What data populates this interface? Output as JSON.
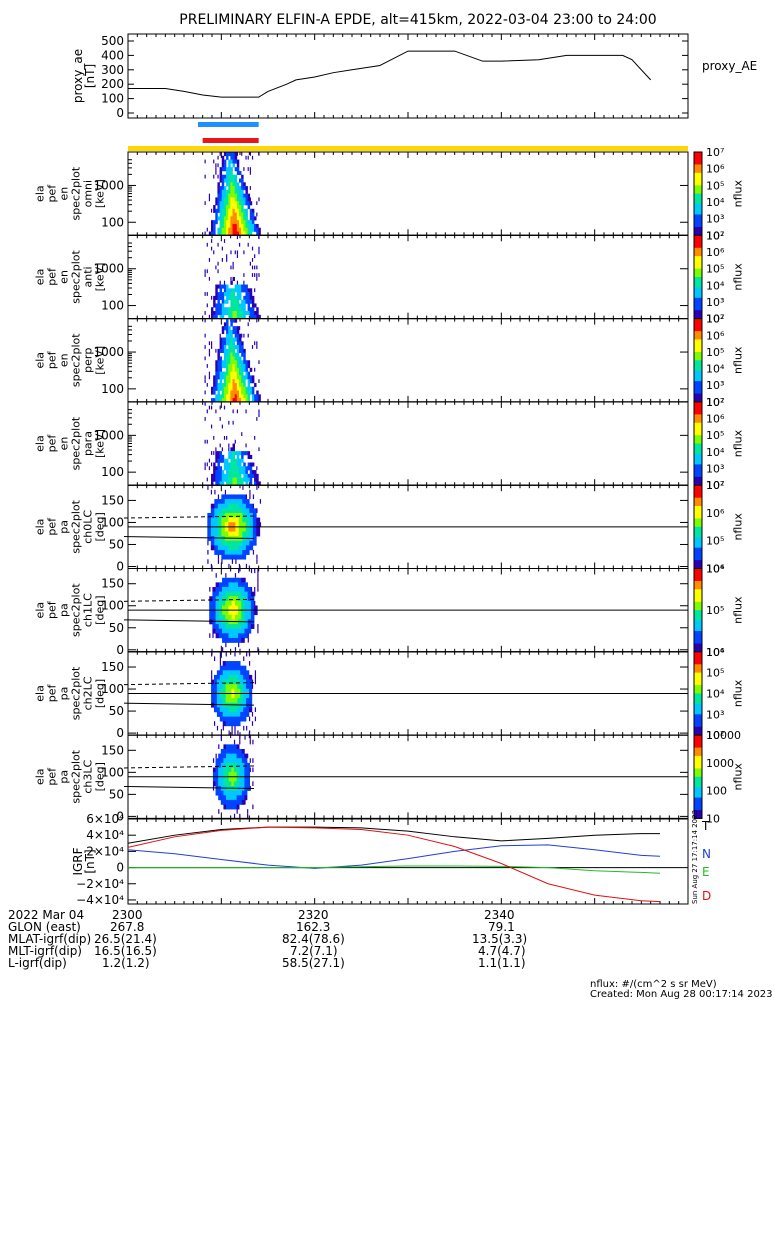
{
  "title": "PRELIMINARY ELFIN-A EPDE, alt=415km, 2022-03-04 23:00 to 24:00",
  "colors": {
    "bar_blue": "#1e90ff",
    "bar_red": "#e8161b",
    "bar_yellow": "#ffd700",
    "T": "#000000",
    "N": "#1f3fd6",
    "E": "#1fbf1f",
    "D": "#e01010"
  },
  "time_axis": {
    "start": "23:00",
    "end": "24:00",
    "ticks": [
      "2300",
      "2320",
      "2340"
    ]
  },
  "chart_data": [
    {
      "type": "line",
      "ylabel": "proxy_ae [nT]",
      "legend": "proxy_AE",
      "ylim": [
        0,
        500
      ],
      "yticks": [
        "0",
        "100",
        "200",
        "300",
        "400",
        "500"
      ],
      "x": [
        0,
        2,
        4,
        6,
        8,
        10,
        12,
        14,
        15,
        17,
        18,
        20,
        22,
        24,
        27,
        30,
        32,
        35,
        38,
        40,
        44,
        47,
        51,
        53,
        54,
        56
      ],
      "series": [
        {
          "name": "proxy_AE",
          "values": [
            170,
            170,
            170,
            150,
            125,
            110,
            110,
            110,
            150,
            200,
            230,
            250,
            280,
            300,
            330,
            430,
            430,
            430,
            360,
            360,
            370,
            400,
            400,
            400,
            370,
            230
          ]
        }
      ],
      "x_units": "minutes after 23:00"
    },
    {
      "type": "heatmap",
      "ylabel": "ela pef en spec2plot omni [keV]",
      "yscale": "log",
      "yticks": [
        "100",
        "1000"
      ],
      "zlabel": "nflux",
      "zticks": [
        "10²",
        "10³",
        "10⁴",
        "10⁵",
        "10⁶",
        "10⁷"
      ],
      "active_minutes": [
        8,
        14
      ]
    },
    {
      "type": "heatmap",
      "ylabel": "ela pef en spec2plot anti [keV]",
      "yscale": "log",
      "yticks": [
        "100",
        "1000"
      ],
      "zlabel": "nflux",
      "zticks": [
        "10²",
        "10³",
        "10⁴",
        "10⁵",
        "10⁶",
        "10⁷"
      ],
      "active_minutes": [
        8,
        14
      ]
    },
    {
      "type": "heatmap",
      "ylabel": "ela pef en spec2plot perp [keV]",
      "yscale": "log",
      "yticks": [
        "100",
        "1000"
      ],
      "zlabel": "nflux",
      "zticks": [
        "10²",
        "10³",
        "10⁴",
        "10⁵",
        "10⁶",
        "10⁷"
      ],
      "active_minutes": [
        8,
        14
      ]
    },
    {
      "type": "heatmap",
      "ylabel": "ela pef en spec2plot para [keV]",
      "yscale": "log",
      "yticks": [
        "100",
        "1000"
      ],
      "zlabel": "nflux",
      "zticks": [
        "10²",
        "10³",
        "10⁴",
        "10⁵",
        "10⁶",
        "10⁷"
      ],
      "active_minutes": [
        8,
        14
      ]
    },
    {
      "type": "heatmap",
      "ylabel": "ela pef pa spec2plot ch0LC [deg]",
      "ylim": [
        0,
        180
      ],
      "yticks": [
        "0",
        "50",
        "100",
        "150"
      ],
      "zlabel": "nflux",
      "zticks": [
        "10⁴",
        "10⁵",
        "10⁶",
        "10⁷"
      ],
      "active_minutes": [
        8,
        14
      ]
    },
    {
      "type": "heatmap",
      "ylabel": "ela pef pa spec2plot ch1LC [deg]",
      "ylim": [
        0,
        180
      ],
      "yticks": [
        "0",
        "50",
        "100",
        "150"
      ],
      "zlabel": "nflux",
      "zticks": [
        "10⁴",
        "10⁵",
        "10⁶"
      ],
      "active_minutes": [
        8,
        14
      ]
    },
    {
      "type": "heatmap",
      "ylabel": "ela pef pa spec2plot ch2LC [deg]",
      "ylim": [
        0,
        180
      ],
      "yticks": [
        "0",
        "50",
        "100",
        "150"
      ],
      "zlabel": "nflux",
      "zticks": [
        "10²",
        "10³",
        "10⁴",
        "10⁵",
        "10⁶"
      ],
      "active_minutes": [
        8,
        14
      ]
    },
    {
      "type": "heatmap",
      "ylabel": "ela pef pa spec2plot ch3LC [deg]",
      "ylim": [
        0,
        180
      ],
      "yticks": [
        "0",
        "50",
        "100",
        "150"
      ],
      "zlabel": "nflux",
      "zticks": [
        "10",
        "100",
        "1000",
        "10000"
      ],
      "active_minutes": [
        8,
        14
      ]
    },
    {
      "type": "line",
      "ylabel": "IGRF [nT]",
      "ylim": [
        -45000,
        60000
      ],
      "yticks": [
        "−4×10⁴",
        "−2×10⁴",
        "0",
        "2×10⁴",
        "4×10⁴",
        "6×10⁴"
      ],
      "x": [
        0,
        5,
        10,
        15,
        20,
        25,
        30,
        35,
        40,
        45,
        50,
        55,
        57
      ],
      "series": [
        {
          "name": "T",
          "values": [
            30000,
            40000,
            47000,
            50000,
            50000,
            49000,
            45000,
            38000,
            33000,
            36000,
            40000,
            42000,
            42000
          ]
        },
        {
          "name": "N",
          "values": [
            22000,
            17000,
            10000,
            3000,
            -1000,
            3000,
            11000,
            20000,
            27000,
            28000,
            22000,
            15000,
            14000
          ]
        },
        {
          "name": "E",
          "values": [
            0,
            0,
            0,
            0,
            0,
            1000,
            2000,
            2000,
            1500,
            0,
            -4000,
            -6000,
            -7000
          ]
        },
        {
          "name": "D",
          "values": [
            25000,
            38000,
            46000,
            50000,
            49000,
            47000,
            40000,
            26000,
            5000,
            -20000,
            -34000,
            -41000,
            -42000
          ]
        }
      ]
    }
  ],
  "panel_labels": {
    "proxy_ae": [
      "proxy_ae",
      "[nT]"
    ],
    "proxy_legend": "proxy_AE",
    "en": [
      [
        "ela",
        "pef",
        "en",
        "spec2plot",
        "omni",
        "[keV]"
      ],
      [
        "ela",
        "pef",
        "en",
        "spec2plot",
        "anti",
        "[keV]"
      ],
      [
        "ela",
        "pef",
        "en",
        "spec2plot",
        "perp",
        "[keV]"
      ],
      [
        "ela",
        "pef",
        "en",
        "spec2plot",
        "para",
        "[keV]"
      ]
    ],
    "pa": [
      [
        "ela",
        "pef",
        "pa",
        "spec2plot",
        "ch0LC",
        "[deg]"
      ],
      [
        "ela",
        "pef",
        "pa",
        "spec2plot",
        "ch1LC",
        "[deg]"
      ],
      [
        "ela",
        "pef",
        "pa",
        "spec2plot",
        "ch2LC",
        "[deg]"
      ],
      [
        "ela",
        "pef",
        "pa",
        "spec2plot",
        "ch3LC",
        "[deg]"
      ]
    ],
    "igrf": [
      "IGRF",
      "[nT]"
    ],
    "zlabel": "nflux",
    "igrf_legend": [
      "T",
      "N",
      "E",
      "D"
    ],
    "stamp": "Sun Aug 27 17:17:14 2023"
  },
  "footer": {
    "rows": [
      {
        "label": "2022 Mar 04",
        "v": [
          "2300",
          "",
          "2320",
          "2340"
        ]
      },
      {
        "label": "GLON (east)",
        "v": [
          "267.8",
          "162.3",
          "79.1"
        ]
      },
      {
        "label": "MLAT-igrf(dip)",
        "v": [
          "26.5(21.4)",
          "82.4(78.6)",
          "13.5(3.3)"
        ]
      },
      {
        "label": "MLT-igrf(dip)",
        "v": [
          "16.5(16.5)",
          "7.2(7.1)",
          "4.7(4.7)"
        ]
      },
      {
        "label": "L-igrf(dip)",
        "v": [
          "1.2(1.2)",
          "58.5(27.1)",
          "1.1(1.1)"
        ]
      }
    ],
    "units": "nflux: #/(cm^2 s sr MeV)",
    "created": "Created: Mon Aug 28 00:17:14 2023"
  }
}
